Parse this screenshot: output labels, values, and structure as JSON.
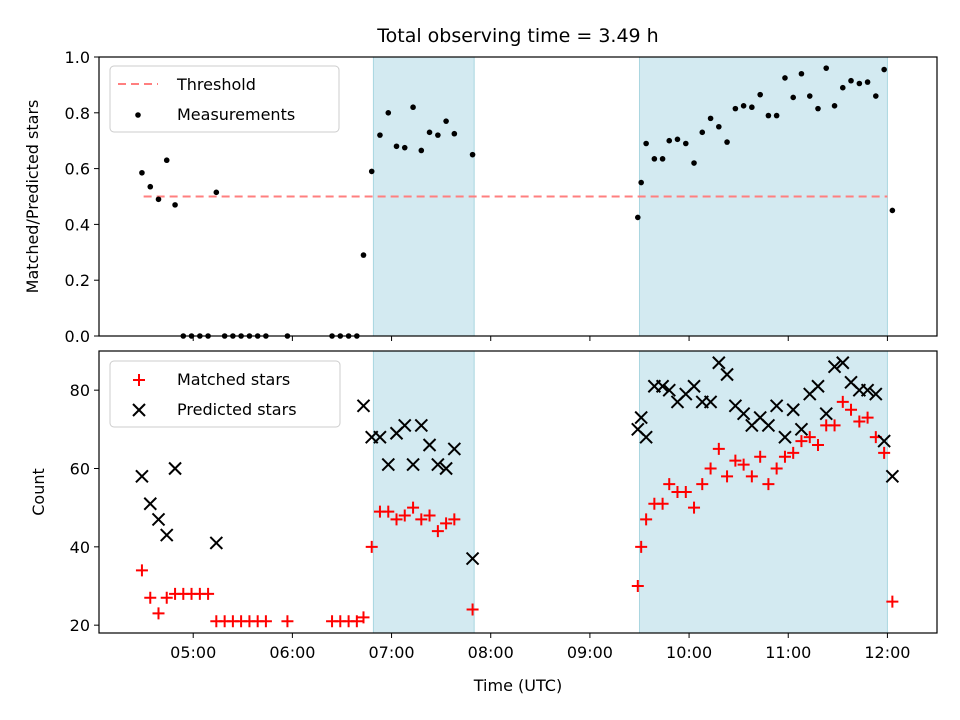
{
  "title": "Total observing time = 3.49 h",
  "x_axis": {
    "label": "Time (UTC)",
    "ticks": [
      "05:00",
      "06:00",
      "07:00",
      "08:00",
      "09:00",
      "10:00",
      "11:00",
      "12:00"
    ],
    "tick_hours": [
      5,
      6,
      7,
      8,
      9,
      10,
      11,
      12
    ],
    "range_hours": [
      4.05,
      12.5
    ]
  },
  "shaded_intervals_hours": [
    [
      6.817,
      7.833
    ],
    [
      9.5,
      12.0
    ]
  ],
  "colors": {
    "shade": "#d3eaf1",
    "threshold": "#ff7f7f",
    "measurement": "#000000",
    "matched": "#ff0000",
    "predicted": "#000000"
  },
  "chart_data": [
    {
      "type": "scatter",
      "panel": "top",
      "ylabel": "Matched/Predicted stars",
      "ylim": [
        0,
        1.0
      ],
      "yticks": [
        "0.0",
        "0.2",
        "0.4",
        "0.6",
        "0.8",
        "1.0"
      ],
      "ytick_values": [
        0,
        0.2,
        0.4,
        0.6,
        0.8,
        1.0
      ],
      "legend": {
        "position": "upper-left",
        "entries": [
          "Threshold",
          "Measurements"
        ]
      },
      "threshold": {
        "name": "Threshold",
        "value": 0.5,
        "x_range": [
          4.5,
          12.0
        ]
      },
      "series": [
        {
          "name": "Measurements",
          "x": [
            4.483,
            4.567,
            4.65,
            4.733,
            4.817,
            4.9,
            4.983,
            5.067,
            5.15,
            5.233,
            5.317,
            5.4,
            5.483,
            5.567,
            5.65,
            5.733,
            5.95,
            6.4,
            6.483,
            6.567,
            6.65,
            6.717,
            6.8,
            6.883,
            6.967,
            7.05,
            7.133,
            7.217,
            7.3,
            7.383,
            7.467,
            7.55,
            7.633,
            7.817,
            9.483,
            9.517,
            9.567,
            9.65,
            9.733,
            9.8,
            9.883,
            9.967,
            10.05,
            10.133,
            10.217,
            10.3,
            10.383,
            10.467,
            10.55,
            10.633,
            10.717,
            10.8,
            10.883,
            10.967,
            11.05,
            11.133,
            11.217,
            11.3,
            11.383,
            11.467,
            11.55,
            11.633,
            11.717,
            11.8,
            11.883,
            11.967,
            12.05
          ],
          "y": [
            0.585,
            0.535,
            0.49,
            0.63,
            0.47,
            0.0,
            0.0,
            0.0,
            0.0,
            0.515,
            0.0,
            0.0,
            0.0,
            0.0,
            0.0,
            0.0,
            0.0,
            0.0,
            0.0,
            0.0,
            0.0,
            0.29,
            0.59,
            0.72,
            0.8,
            0.68,
            0.675,
            0.82,
            0.665,
            0.73,
            0.72,
            0.77,
            0.725,
            0.65,
            0.425,
            0.55,
            0.69,
            0.635,
            0.635,
            0.7,
            0.705,
            0.69,
            0.62,
            0.73,
            0.78,
            0.75,
            0.695,
            0.815,
            0.825,
            0.82,
            0.865,
            0.79,
            0.79,
            0.925,
            0.855,
            0.94,
            0.86,
            0.815,
            0.96,
            0.825,
            0.89,
            0.915,
            0.905,
            0.91,
            0.86,
            0.955,
            0.45
          ]
        }
      ]
    },
    {
      "type": "scatter",
      "panel": "bottom",
      "ylabel": "Count",
      "ylim": [
        18,
        90
      ],
      "yticks": [
        "20",
        "40",
        "60",
        "80"
      ],
      "ytick_values": [
        20,
        40,
        60,
        80
      ],
      "legend": {
        "position": "upper-left",
        "entries": [
          "Matched stars",
          "Predicted stars"
        ]
      },
      "series": [
        {
          "name": "Matched stars",
          "marker": "plus",
          "x": [
            4.483,
            4.567,
            4.65,
            4.733,
            4.817,
            4.9,
            4.983,
            5.067,
            5.15,
            5.233,
            5.317,
            5.4,
            5.483,
            5.567,
            5.65,
            5.733,
            5.95,
            6.4,
            6.483,
            6.567,
            6.65,
            6.717,
            6.8,
            6.883,
            6.967,
            7.05,
            7.133,
            7.217,
            7.3,
            7.383,
            7.467,
            7.55,
            7.633,
            7.817,
            9.483,
            9.517,
            9.567,
            9.65,
            9.733,
            9.8,
            9.883,
            9.967,
            10.05,
            10.133,
            10.217,
            10.3,
            10.383,
            10.467,
            10.55,
            10.633,
            10.717,
            10.8,
            10.883,
            10.967,
            11.05,
            11.133,
            11.217,
            11.3,
            11.383,
            11.467,
            11.55,
            11.633,
            11.717,
            11.8,
            11.883,
            11.967,
            12.05
          ],
          "y": [
            34,
            27,
            23,
            27,
            28,
            28,
            28,
            28,
            28,
            21,
            21,
            21,
            21,
            21,
            21,
            21,
            21,
            21,
            21,
            21,
            21,
            22,
            40,
            49,
            49,
            47,
            48,
            50,
            47,
            48,
            44,
            46,
            47,
            24,
            30,
            40,
            47,
            51,
            51,
            56,
            54,
            54,
            50,
            56,
            60,
            65,
            58,
            62,
            61,
            58,
            63,
            56,
            60,
            63,
            64,
            67,
            68,
            66,
            71,
            71,
            77,
            75,
            72,
            73,
            68,
            64,
            26
          ]
        },
        {
          "name": "Predicted stars",
          "marker": "x",
          "x": [
            4.483,
            4.567,
            4.65,
            4.733,
            4.817,
            5.233,
            6.717,
            6.8,
            6.883,
            6.967,
            7.05,
            7.133,
            7.217,
            7.3,
            7.383,
            7.467,
            7.55,
            7.633,
            7.817,
            9.483,
            9.517,
            9.567,
            9.65,
            9.733,
            9.8,
            9.883,
            9.967,
            10.05,
            10.133,
            10.217,
            10.3,
            10.383,
            10.467,
            10.55,
            10.633,
            10.717,
            10.8,
            10.883,
            10.967,
            11.05,
            11.133,
            11.217,
            11.3,
            11.383,
            11.467,
            11.55,
            11.633,
            11.717,
            11.8,
            11.883,
            11.967,
            12.05
          ],
          "y": [
            58,
            51,
            47,
            43,
            60,
            41,
            76,
            68,
            68,
            61,
            69,
            71,
            61,
            71,
            66,
            61,
            60,
            65,
            37,
            70,
            73,
            68,
            81,
            81,
            80,
            77,
            79,
            81,
            77,
            77,
            87,
            84,
            76,
            74,
            71,
            73,
            71,
            76,
            68,
            75,
            70,
            79,
            81,
            74,
            86,
            87,
            82,
            80,
            80,
            79,
            67,
            58
          ]
        }
      ]
    }
  ]
}
